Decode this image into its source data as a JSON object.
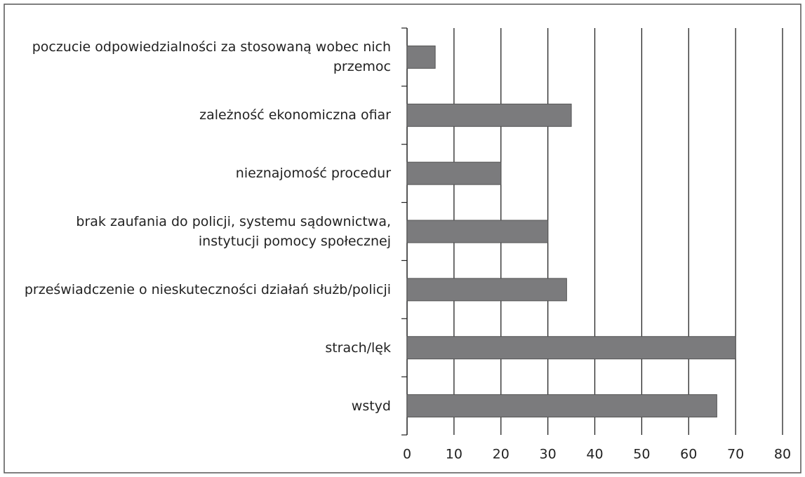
{
  "chart_data": {
    "type": "barh",
    "categories": [
      "poczucie odpowiedzialności za stosowaną wobec nich przemoc",
      "zależność ekonomiczna ofiar",
      "nieznajomość procedur",
      "brak zaufania do policji, systemu sądownictwa, instytucji pomocy społecznej",
      "przeświadczenie o nieskuteczności działań służb/policji",
      "strach/lęk",
      "wstyd"
    ],
    "values": [
      6,
      35,
      20,
      30,
      34,
      70,
      66
    ],
    "color": "#7b7b7d",
    "xlim": [
      0,
      80
    ],
    "xticks": [
      0,
      10,
      20,
      30,
      40,
      50,
      60,
      70,
      80
    ],
    "grid": true
  }
}
